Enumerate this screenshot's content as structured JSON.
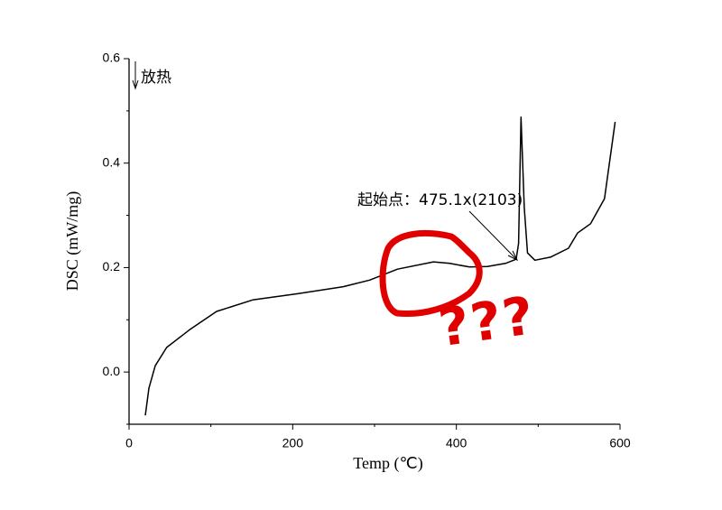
{
  "chart_data": {
    "type": "line",
    "x_label": "Temp (℃)",
    "y_label": "DSC (mW/mg)",
    "xlim": [
      0,
      600
    ],
    "ylim": [
      -0.1,
      0.6
    ],
    "xticks": [
      0,
      200,
      400,
      600
    ],
    "yticks": [
      {
        "value": 0,
        "label": "0.0"
      },
      0.2,
      0.4,
      0.6
    ],
    "xminorticks": [
      100,
      300,
      500
    ],
    "yminorticks": [
      -0.1,
      0.1,
      0.3,
      0.5
    ],
    "grid": false,
    "series": [
      {
        "color": "#000000",
        "x": [
          19.9,
          24.3,
          32,
          46,
          74,
          107,
          151,
          206,
          261,
          294,
          328,
          372,
          392,
          416,
          438,
          460,
          473,
          476,
          479,
          483,
          487,
          496,
          515,
          537,
          548,
          564,
          581,
          594
        ],
        "values": [
          -0.083,
          -0.031,
          0.012,
          0.047,
          0.081,
          0.116,
          0.138,
          0.15,
          0.163,
          0.176,
          0.197,
          0.211,
          0.208,
          0.201,
          0.202,
          0.208,
          0.216,
          0.246,
          0.488,
          0.315,
          0.228,
          0.214,
          0.22,
          0.237,
          0.266,
          0.284,
          0.332,
          0.479
        ]
      }
    ],
    "annotations": [
      {
        "text": "起始点：475.1x(2103)"
      },
      {
        "text": "放热"
      },
      {
        "text": "???"
      }
    ]
  }
}
